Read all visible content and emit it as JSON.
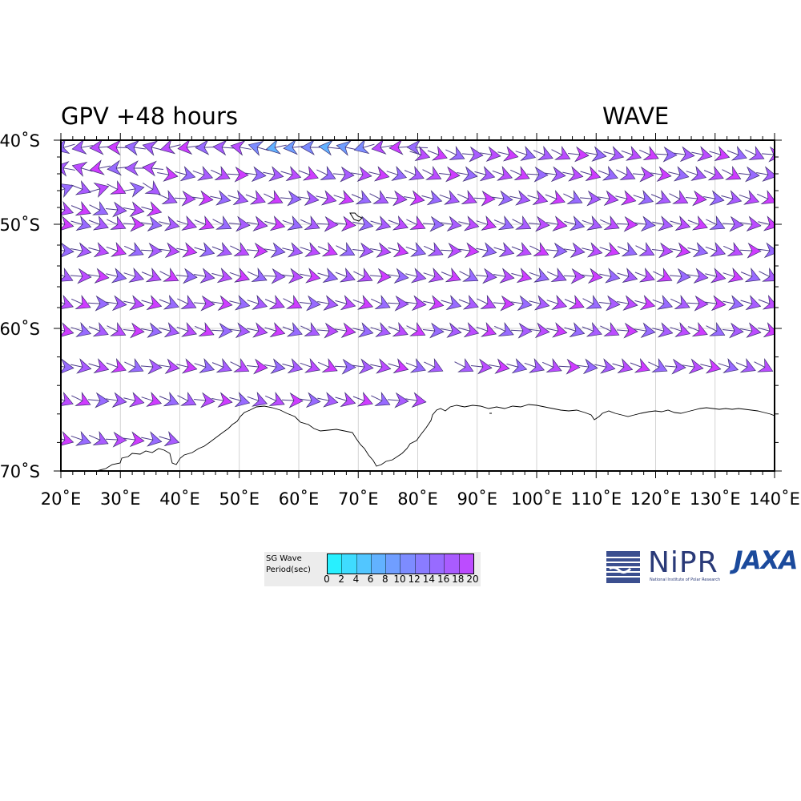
{
  "header": {
    "left_title": "GPV +48 hours",
    "right_title": "WAVE"
  },
  "map": {
    "lat_labels": [
      "40˚S",
      "50˚S",
      "60˚S",
      "70˚S"
    ],
    "lon_labels": [
      "20˚E",
      "30˚E",
      "40˚E",
      "50˚E",
      "60˚E",
      "70˚E",
      "80˚E",
      "90˚E",
      "100˚E",
      "110˚E",
      "120˚E",
      "130˚E",
      "140˚E"
    ],
    "lon_range": [
      20,
      140
    ],
    "lat_range": [
      -40,
      -70
    ],
    "vector_field": "wave direction arrows colored by significant wave period",
    "dominant_direction": "eastward"
  },
  "legend": {
    "title_line1": "SG Wave",
    "title_line2": "Period(sec)",
    "ticks": [
      "0",
      "2",
      "4",
      "6",
      "8",
      "10",
      "12",
      "14",
      "16",
      "18",
      "20"
    ],
    "colors": [
      "#28f0ff",
      "#3fdcff",
      "#52c6ff",
      "#62b2ff",
      "#709eff",
      "#7d8cff",
      "#8a7cff",
      "#986bff",
      "#a95cff",
      "#bc4cff",
      "#cf3cff",
      "#e02ff6",
      "#ee22ee"
    ]
  },
  "logos": {
    "nipr_text": "NiPR",
    "nipr_subtitle": "National Institute of Polar Research",
    "jaxa_text": "JAXA"
  }
}
